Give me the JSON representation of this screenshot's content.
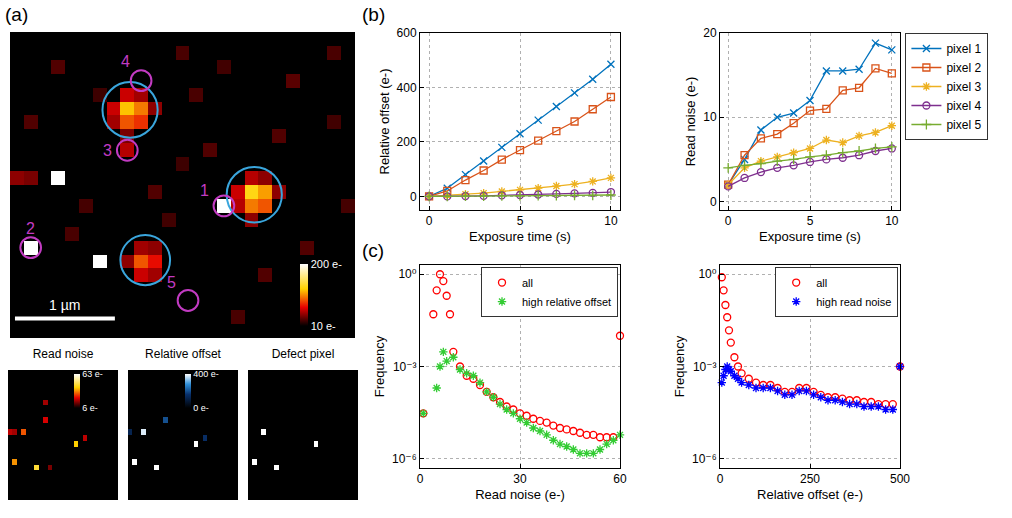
{
  "chart_data": [
    {
      "type": "heatmap",
      "panel": "(a)",
      "color": "hot",
      "columns": 25,
      "rows": 22,
      "background": 10,
      "tick_labels": false,
      "pixels": [
        [
          8,
          4,
          60
        ],
        [
          9,
          4,
          50
        ],
        [
          7,
          5,
          60
        ],
        [
          8,
          5,
          120
        ],
        [
          9,
          5,
          100
        ],
        [
          10,
          5,
          45
        ],
        [
          7,
          6,
          50
        ],
        [
          8,
          6,
          90
        ],
        [
          9,
          6,
          80
        ],
        [
          8,
          7,
          40
        ],
        [
          8,
          8,
          55
        ],
        [
          17,
          10,
          55
        ],
        [
          18,
          10,
          45
        ],
        [
          16,
          11,
          60
        ],
        [
          17,
          11,
          130
        ],
        [
          18,
          11,
          110
        ],
        [
          19,
          11,
          45
        ],
        [
          16,
          12,
          55
        ],
        [
          17,
          12,
          100
        ],
        [
          18,
          12,
          90
        ],
        [
          17,
          13,
          45
        ],
        [
          9,
          15,
          50
        ],
        [
          10,
          15,
          45
        ],
        [
          8,
          16,
          45
        ],
        [
          9,
          16,
          90
        ],
        [
          10,
          16,
          70
        ],
        [
          9,
          17,
          60
        ],
        [
          10,
          17,
          50
        ],
        [
          15,
          12,
          200
        ],
        [
          1,
          15,
          200
        ],
        [
          3,
          10,
          200
        ],
        [
          6,
          16,
          200
        ],
        [
          0,
          10,
          45
        ],
        [
          1,
          10,
          40
        ],
        [
          3,
          2,
          30
        ],
        [
          12,
          1,
          28
        ],
        [
          20,
          3,
          32
        ],
        [
          23,
          6,
          26
        ],
        [
          14,
          8,
          30
        ],
        [
          5,
          12,
          27
        ],
        [
          21,
          15,
          30
        ],
        [
          16,
          20,
          28
        ],
        [
          11,
          13,
          26
        ],
        [
          19,
          7,
          30
        ],
        [
          6,
          4,
          25
        ],
        [
          13,
          4,
          28
        ],
        [
          1,
          6,
          30
        ],
        [
          24,
          12,
          27
        ],
        [
          18,
          17,
          30
        ],
        [
          12,
          9,
          25
        ],
        [
          4,
          14,
          28
        ],
        [
          15,
          2,
          26
        ],
        [
          10,
          11,
          30
        ],
        [
          23,
          1,
          28
        ]
      ],
      "colorbar": {
        "range": [
          10,
          200
        ],
        "ticks": [
          {
            "value": 200,
            "label": "200 e-"
          },
          {
            "value": 10,
            "label": "10 e-"
          }
        ]
      },
      "circles": [
        {
          "x": 8.2,
          "y": 5.1,
          "r": 2,
          "color": "#3aa6dd"
        },
        {
          "x": 17.2,
          "y": 11.2,
          "r": 2,
          "color": "#3aa6dd"
        },
        {
          "x": 9.3,
          "y": 15.9,
          "r": 1.8,
          "color": "#3aa6dd"
        },
        {
          "x": 15,
          "y": 12,
          "r": 0.75,
          "color": "#c23bc2"
        },
        {
          "x": 1,
          "y": 15,
          "r": 0.75,
          "color": "#c23bc2"
        },
        {
          "x": 8,
          "y": 8,
          "r": 0.75,
          "color": "#c23bc2"
        },
        {
          "x": 9,
          "y": 3,
          "r": 0.75,
          "color": "#c23bc2"
        },
        {
          "x": 12.4,
          "y": 18.8,
          "r": 0.75,
          "color": "#c23bc2"
        }
      ],
      "labels": [
        {
          "text": "1",
          "x": 13.6,
          "y": 10.9,
          "color": "#c23bc2"
        },
        {
          "text": "2",
          "x": 1,
          "y": 13.6,
          "color": "#c23bc2"
        },
        {
          "text": "3",
          "x": 6.6,
          "y": 8,
          "color": "#c23bc2"
        },
        {
          "text": "4",
          "x": 7.9,
          "y": 1.6,
          "color": "#c23bc2"
        },
        {
          "text": "5",
          "x": 11.2,
          "y": 17.5,
          "color": "#c23bc2"
        }
      ],
      "scalebar": {
        "text": "1 µm",
        "x": [
          -0.14,
          7.1
        ],
        "y": 20.1
      }
    },
    {
      "type": "heatmap",
      "title": "Read noise",
      "color": "hot",
      "columns": 25,
      "rows": 22,
      "background": 6,
      "tick_labels": false,
      "pixels": [
        [
          15,
          12,
          40
        ],
        [
          1,
          15,
          35
        ],
        [
          3,
          10,
          30
        ],
        [
          6,
          16,
          45
        ],
        [
          0,
          10,
          20
        ],
        [
          1,
          10,
          18
        ],
        [
          17,
          11,
          20
        ],
        [
          8,
          5,
          18
        ],
        [
          9,
          16,
          15
        ],
        [
          8,
          8,
          22
        ]
      ],
      "colorbar": {
        "range": [
          6,
          63
        ],
        "ticks": [
          {
            "value": 63,
            "label": "63 e-"
          },
          {
            "value": 6,
            "label": "6 e-"
          }
        ]
      }
    },
    {
      "type": "heatmap",
      "title": "Relative offset",
      "color": "blue",
      "columns": 25,
      "rows": 22,
      "background": 0,
      "tick_labels": false,
      "pixels": [
        [
          15,
          12,
          400
        ],
        [
          1,
          15,
          400
        ],
        [
          3,
          10,
          380
        ],
        [
          6,
          16,
          400
        ],
        [
          17,
          11,
          150
        ],
        [
          0,
          10,
          120
        ],
        [
          8,
          8,
          200
        ]
      ],
      "colorbar": {
        "range": [
          0,
          400
        ],
        "ticks": [
          {
            "value": 400,
            "label": "400 e-"
          },
          {
            "value": 0,
            "label": "0 e-"
          }
        ]
      }
    },
    {
      "type": "heatmap",
      "title": "Defect pixel",
      "color": "gray",
      "columns": 25,
      "rows": 22,
      "background": 0,
      "tick_labels": false,
      "pixels": [
        [
          15,
          12,
          1
        ],
        [
          1,
          15,
          1
        ],
        [
          3,
          10,
          1
        ],
        [
          6,
          16,
          1
        ]
      ]
    },
    {
      "type": "line",
      "panel": "(b)",
      "x_label": "Exposure time (s)",
      "y_label": "Relative offset (e-)",
      "x": [
        0,
        1,
        2,
        3,
        4,
        5,
        6,
        7,
        8,
        9,
        10
      ],
      "xlim": [
        -0.5,
        10.5
      ],
      "xticks": [
        0,
        5,
        10
      ],
      "ylim": [
        -50,
        600
      ],
      "yticks": [
        0,
        200,
        400,
        600
      ],
      "grid": true,
      "series": [
        {
          "name": "pixel 1",
          "color": "#0072bd",
          "marker": "x",
          "line_style": "solid",
          "values": [
            0,
            30,
            80,
            130,
            180,
            230,
            280,
            330,
            380,
            430,
            485
          ]
        },
        {
          "name": "pixel 2",
          "color": "#d95319",
          "marker": "square",
          "line_style": "solid",
          "values": [
            0,
            20,
            60,
            95,
            135,
            170,
            205,
            240,
            275,
            320,
            365
          ]
        },
        {
          "name": "pixel 3",
          "color": "#edb120",
          "marker": "asterisk",
          "line_style": "solid",
          "values": [
            0,
            3,
            8,
            12,
            18,
            24,
            30,
            38,
            45,
            55,
            68
          ]
        },
        {
          "name": "pixel 4",
          "color": "#7e2f8e",
          "marker": "circle",
          "line_style": "solid",
          "values": [
            0,
            0,
            1,
            2,
            4,
            5,
            7,
            9,
            11,
            13,
            16
          ]
        },
        {
          "name": "pixel 5",
          "color": "#77ac30",
          "marker": "plus",
          "line_style": "solid",
          "values": [
            0,
            0,
            1,
            1,
            2,
            2,
            3,
            3,
            4,
            4,
            5
          ]
        }
      ]
    },
    {
      "type": "line",
      "x_label": "Exposure time (s)",
      "y_label": "Read noise (e-)",
      "legend": "right",
      "x": [
        0,
        1,
        2,
        3,
        4,
        5,
        6,
        7,
        8,
        9,
        10
      ],
      "xlim": [
        -0.5,
        10.5
      ],
      "xticks": [
        0,
        5,
        10
      ],
      "ylim": [
        -1,
        20
      ],
      "yticks": [
        0,
        10,
        20
      ],
      "grid": true,
      "series": [
        {
          "name": "pixel 1",
          "color": "#0072bd",
          "marker": "x",
          "line_style": "solid",
          "values": [
            2,
            5,
            8.5,
            10,
            10.5,
            12,
            15.5,
            15.5,
            15.7,
            18.8,
            18
          ]
        },
        {
          "name": "pixel 2",
          "color": "#d95319",
          "marker": "square",
          "line_style": "solid",
          "values": [
            2,
            5.5,
            7.5,
            8,
            9.3,
            10.8,
            11,
            13.2,
            13.5,
            15.8,
            15.2
          ]
        },
        {
          "name": "pixel 3",
          "color": "#edb120",
          "marker": "asterisk",
          "line_style": "solid",
          "values": [
            2,
            4,
            4.8,
            5.3,
            5.8,
            6.3,
            7.3,
            7,
            7.8,
            8.2,
            9
          ]
        },
        {
          "name": "pixel 4",
          "color": "#7e2f8e",
          "marker": "circle",
          "line_style": "solid",
          "values": [
            1.8,
            2.8,
            3.5,
            4,
            4.3,
            4.7,
            5,
            5.2,
            5.5,
            6,
            6.3
          ]
        },
        {
          "name": "pixel 5",
          "color": "#77ac30",
          "marker": "plus",
          "line_style": "solid",
          "values": [
            4,
            4.3,
            4.5,
            4.8,
            5,
            5.3,
            5.5,
            5.8,
            6,
            6.3,
            6.5
          ]
        }
      ]
    },
    {
      "type": "scatter",
      "panel": "(c)",
      "x_label": "Read noise (e-)",
      "y_label": "Frequency",
      "log": "y",
      "legend": "top right",
      "xlim": [
        0,
        60
      ],
      "xticks": [
        0,
        30,
        60
      ],
      "ylim": [
        5e-07,
        2
      ],
      "yticks": [
        {
          "value": 1,
          "label": "10⁰"
        },
        {
          "value": 0.001,
          "label": "10⁻³"
        },
        {
          "value": 1e-06,
          "label": "10⁻⁶"
        }
      ],
      "grid": true,
      "series": [
        {
          "name": "all",
          "color": "#ff0000",
          "marker": "circle",
          "x": [
            1,
            4,
            5,
            6,
            7,
            8,
            9,
            10,
            12,
            14,
            16,
            18,
            20,
            22,
            24,
            26,
            28,
            30,
            32,
            34,
            36,
            38,
            40,
            42,
            44,
            46,
            48,
            50,
            52,
            54,
            56,
            58,
            60
          ],
          "values": [
            3e-05,
            0.05,
            0.3,
            1.0,
            0.6,
            0.2,
            0.05,
            0.003,
            0.001,
            0.0005,
            0.0004,
            0.00025,
            0.00015,
            0.0001,
            7e-05,
            5e-05,
            4e-05,
            3e-05,
            2.5e-05,
            2e-05,
            1.7e-05,
            1.5e-05,
            1.2e-05,
            1e-05,
            9e-06,
            8e-06,
            7e-06,
            6e-06,
            6e-06,
            5e-06,
            5e-06,
            5e-06,
            0.01
          ]
        },
        {
          "name": "high relative offset",
          "color": "#33cc33",
          "marker": "asterisk",
          "x": [
            1,
            5,
            6,
            7,
            8,
            10,
            12,
            14,
            16,
            18,
            20,
            22,
            24,
            26,
            28,
            30,
            32,
            34,
            36,
            38,
            40,
            42,
            44,
            46,
            48,
            50,
            52,
            54,
            56,
            58,
            60
          ],
          "values": [
            3e-05,
            0.0002,
            0.001,
            0.003,
            0.0015,
            0.002,
            0.0008,
            0.0006,
            0.0005,
            0.0003,
            0.00015,
            0.0001,
            6e-05,
            4e-05,
            3e-05,
            2e-05,
            1.5e-05,
            1e-05,
            8e-06,
            6e-06,
            4e-06,
            3e-06,
            2.5e-06,
            2e-06,
            1.5e-06,
            1.5e-06,
            1.5e-06,
            2e-06,
            3e-06,
            4e-06,
            6e-06
          ]
        }
      ]
    },
    {
      "type": "scatter",
      "x_label": "Relative offset (e-)",
      "y_label": "Frequency",
      "log": "y",
      "legend": "top right",
      "xlim": [
        0,
        500
      ],
      "xticks": [
        0,
        250,
        500
      ],
      "ylim": [
        5e-07,
        2
      ],
      "yticks": [
        {
          "value": 1,
          "label": "10⁰"
        },
        {
          "value": 0.001,
          "label": "10⁻³"
        },
        {
          "value": 1e-06,
          "label": "10⁻⁶"
        }
      ],
      "grid": true,
      "series": [
        {
          "name": "all",
          "color": "#ff0000",
          "marker": "circle",
          "x": [
            5,
            10,
            15,
            20,
            25,
            30,
            40,
            50,
            60,
            80,
            100,
            120,
            140,
            160,
            180,
            200,
            220,
            240,
            260,
            280,
            300,
            320,
            340,
            360,
            380,
            400,
            420,
            440,
            460,
            480,
            500
          ],
          "values": [
            0.8,
            0.3,
            0.1,
            0.04,
            0.015,
            0.006,
            0.002,
            0.001,
            0.0006,
            0.0004,
            0.0003,
            0.00025,
            0.00025,
            0.0002,
            0.00015,
            0.00015,
            0.0002,
            0.0002,
            0.00015,
            0.00012,
            0.0001,
            0.0001,
            9e-05,
            8e-05,
            8e-05,
            7e-05,
            7e-05,
            6e-05,
            6e-05,
            6e-05,
            0.001
          ]
        },
        {
          "name": "high read noise",
          "color": "#0000ff",
          "marker": "asterisk",
          "x": [
            5,
            10,
            15,
            20,
            25,
            30,
            40,
            50,
            60,
            80,
            100,
            120,
            140,
            160,
            180,
            200,
            220,
            240,
            260,
            280,
            300,
            320,
            340,
            360,
            380,
            400,
            420,
            440,
            460,
            480,
            500
          ],
          "values": [
            0.0003,
            0.0005,
            0.0008,
            0.001,
            0.0008,
            0.0007,
            0.0005,
            0.0004,
            0.0003,
            0.00025,
            0.0002,
            0.0002,
            0.0002,
            0.00016,
            0.00012,
            0.00012,
            0.00016,
            0.00016,
            0.00012,
            0.0001,
            8e-05,
            8e-05,
            7e-05,
            6e-05,
            6e-05,
            5e-05,
            5e-05,
            5e-05,
            4e-05,
            4e-05,
            0.001
          ]
        }
      ]
    }
  ]
}
